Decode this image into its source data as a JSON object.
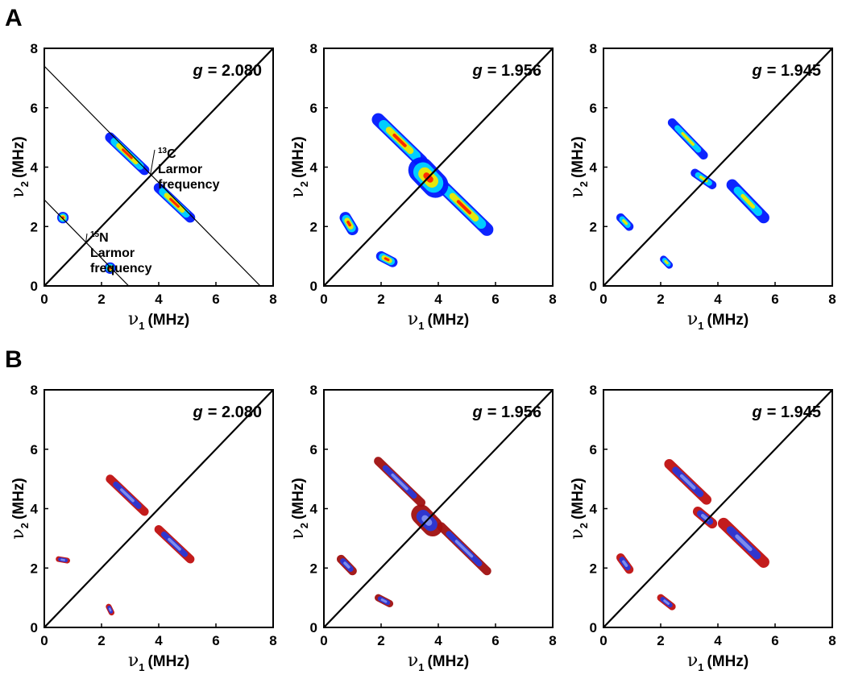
{
  "chart_data": [
    {
      "type": "contour",
      "panel_label": "A",
      "annotation": {
        "symbol": "g",
        "text": "= 2.080"
      },
      "x_label": {
        "symbol": "ν",
        "subscript": "1",
        "unit": "(MHz)"
      },
      "y_label": {
        "symbol": "ν",
        "subscript": "2",
        "unit": "(MHz)"
      },
      "xlim": [
        0,
        8
      ],
      "ylim": [
        0,
        8
      ],
      "xticks": [
        0,
        2,
        4,
        6,
        8
      ],
      "yticks": [
        0,
        2,
        4,
        6,
        8
      ],
      "colors": [
        "#0018ff",
        "#00d8ff",
        "#f0e800",
        "#ff2000"
      ],
      "reference_lines": [
        {
          "x": [
            0,
            8
          ],
          "y": [
            0,
            8
          ]
        },
        {
          "x": [
            0,
            7.55
          ],
          "y": [
            7.4,
            0
          ]
        },
        {
          "x": [
            0,
            2.95
          ],
          "y": [
            2.9,
            0
          ]
        }
      ],
      "annotations": [
        {
          "mass": "13",
          "element": "C",
          "lines": [
            "Larmor",
            "frequency"
          ]
        },
        {
          "mass": "15",
          "element": "N",
          "lines": [
            "Larmor",
            "frequency"
          ]
        }
      ],
      "features": [
        {
          "x": [
            2.3,
            3.5
          ],
          "y": [
            5.0,
            3.9
          ],
          "width": 0.35
        },
        {
          "x": [
            4.0,
            5.1
          ],
          "y": [
            3.3,
            2.3
          ],
          "width": 0.35
        },
        {
          "x": [
            0.65,
            0.65
          ],
          "y": [
            2.3,
            2.3
          ],
          "width": 0.4
        },
        {
          "x": [
            2.3,
            2.3
          ],
          "y": [
            0.6,
            0.6
          ],
          "width": 0.4
        }
      ]
    },
    {
      "type": "contour",
      "annotation": {
        "symbol": "g",
        "text": "= 1.956"
      },
      "x_label": {
        "symbol": "ν",
        "subscript": "1",
        "unit": "(MHz)"
      },
      "y_label": {
        "symbol": "ν",
        "subscript": "2",
        "unit": "(MHz)"
      },
      "xlim": [
        0,
        8
      ],
      "ylim": [
        0,
        8
      ],
      "xticks": [
        0,
        2,
        4,
        6,
        8
      ],
      "yticks": [
        0,
        2,
        4,
        6,
        8
      ],
      "colors": [
        "#0018ff",
        "#00d8ff",
        "#f0e800",
        "#ff2000"
      ],
      "reference_lines": [
        {
          "x": [
            0,
            8
          ],
          "y": [
            0,
            8
          ]
        }
      ],
      "features": [
        {
          "x": [
            1.9,
            3.4
          ],
          "y": [
            5.6,
            4.2
          ],
          "width": 0.45
        },
        {
          "x": [
            4.1,
            5.7
          ],
          "y": [
            3.4,
            1.9
          ],
          "width": 0.45
        },
        {
          "x": [
            3.4,
            3.9
          ],
          "y": [
            3.9,
            3.4
          ],
          "width": 0.9
        },
        {
          "x": [
            0.75,
            1.0
          ],
          "y": [
            2.3,
            1.9
          ],
          "width": 0.4
        },
        {
          "x": [
            2.0,
            2.4
          ],
          "y": [
            1.0,
            0.8
          ],
          "width": 0.35
        }
      ]
    },
    {
      "type": "contour",
      "annotation": {
        "symbol": "g",
        "text": "= 1.945"
      },
      "x_label": {
        "symbol": "ν",
        "subscript": "1",
        "unit": "(MHz)"
      },
      "y_label": {
        "symbol": "ν",
        "subscript": "2",
        "unit": "(MHz)"
      },
      "xlim": [
        0,
        8
      ],
      "ylim": [
        0,
        8
      ],
      "xticks": [
        0,
        2,
        4,
        6,
        8
      ],
      "yticks": [
        0,
        2,
        4,
        6,
        8
      ],
      "colors": [
        "#0018ff",
        "#00d8ff",
        "#f0e800"
      ],
      "reference_lines": [
        {
          "x": [
            0,
            8
          ],
          "y": [
            0,
            8
          ]
        }
      ],
      "features": [
        {
          "x": [
            2.4,
            3.5
          ],
          "y": [
            5.5,
            4.4
          ],
          "width": 0.3
        },
        {
          "x": [
            4.5,
            5.6
          ],
          "y": [
            3.4,
            2.3
          ],
          "width": 0.4
        },
        {
          "x": [
            3.2,
            3.8
          ],
          "y": [
            3.8,
            3.4
          ],
          "width": 0.3
        },
        {
          "x": [
            0.6,
            0.9
          ],
          "y": [
            2.3,
            2.0
          ],
          "width": 0.3
        },
        {
          "x": [
            2.1,
            2.3
          ],
          "y": [
            0.9,
            0.7
          ],
          "width": 0.25
        }
      ]
    },
    {
      "type": "contour",
      "panel_label": "B",
      "annotation": {
        "symbol": "g",
        "text": "= 2.080"
      },
      "x_label": {
        "symbol": "ν",
        "subscript": "1",
        "unit": "(MHz)"
      },
      "y_label": {
        "symbol": "ν",
        "subscript": "2",
        "unit": "(MHz)"
      },
      "xlim": [
        0,
        8
      ],
      "ylim": [
        0,
        8
      ],
      "xticks": [
        0,
        2,
        4,
        6,
        8
      ],
      "yticks": [
        0,
        2,
        4,
        6,
        8
      ],
      "colors": [
        "#c01010",
        "#2838d8",
        "#8090f0"
      ],
      "reference_lines": [
        {
          "x": [
            0,
            8
          ],
          "y": [
            0,
            8
          ]
        }
      ],
      "features": [
        {
          "x": [
            2.3,
            3.5
          ],
          "y": [
            5.0,
            3.9
          ],
          "width": 0.3
        },
        {
          "x": [
            4.0,
            5.1
          ],
          "y": [
            3.3,
            2.3
          ],
          "width": 0.3
        },
        {
          "x": [
            0.5,
            0.8
          ],
          "y": [
            2.3,
            2.25
          ],
          "width": 0.2
        },
        {
          "x": [
            2.25,
            2.35
          ],
          "y": [
            0.7,
            0.5
          ],
          "width": 0.2
        }
      ]
    },
    {
      "type": "contour",
      "annotation": {
        "symbol": "g",
        "text": "= 1.956"
      },
      "x_label": {
        "symbol": "ν",
        "subscript": "1",
        "unit": "(MHz)"
      },
      "y_label": {
        "symbol": "ν",
        "subscript": "2",
        "unit": "(MHz)"
      },
      "xlim": [
        0,
        8
      ],
      "ylim": [
        0,
        8
      ],
      "xticks": [
        0,
        2,
        4,
        6,
        8
      ],
      "yticks": [
        0,
        2,
        4,
        6,
        8
      ],
      "colors": [
        "#a01010",
        "#2838d8",
        "#8090f0"
      ],
      "reference_lines": [
        {
          "x": [
            0,
            8
          ],
          "y": [
            0,
            8
          ]
        }
      ],
      "features": [
        {
          "x": [
            1.9,
            3.4
          ],
          "y": [
            5.6,
            4.2
          ],
          "width": 0.3
        },
        {
          "x": [
            4.1,
            5.7
          ],
          "y": [
            3.4,
            1.9
          ],
          "width": 0.3
        },
        {
          "x": [
            3.4,
            3.8
          ],
          "y": [
            3.8,
            3.4
          ],
          "width": 0.7
        },
        {
          "x": [
            0.6,
            1.0
          ],
          "y": [
            2.3,
            1.9
          ],
          "width": 0.3
        },
        {
          "x": [
            1.9,
            2.3
          ],
          "y": [
            1.0,
            0.8
          ],
          "width": 0.25
        }
      ]
    },
    {
      "type": "contour",
      "annotation": {
        "symbol": "g",
        "text": "= 1.945"
      },
      "x_label": {
        "symbol": "ν",
        "subscript": "1",
        "unit": "(MHz)"
      },
      "y_label": {
        "symbol": "ν",
        "subscript": "2",
        "unit": "(MHz)"
      },
      "xlim": [
        0,
        8
      ],
      "ylim": [
        0,
        8
      ],
      "xticks": [
        0,
        2,
        4,
        6,
        8
      ],
      "yticks": [
        0,
        2,
        4,
        6,
        8
      ],
      "colors": [
        "#c01010",
        "#2838d8",
        "#8090f0"
      ],
      "reference_lines": [
        {
          "x": [
            0,
            8
          ],
          "y": [
            0,
            8
          ]
        }
      ],
      "features": [
        {
          "x": [
            2.3,
            3.6
          ],
          "y": [
            5.5,
            4.3
          ],
          "width": 0.35
        },
        {
          "x": [
            4.2,
            5.6
          ],
          "y": [
            3.5,
            2.2
          ],
          "width": 0.4
        },
        {
          "x": [
            3.3,
            3.8
          ],
          "y": [
            3.9,
            3.5
          ],
          "width": 0.35
        },
        {
          "x": [
            0.6,
            0.9
          ],
          "y": [
            2.35,
            1.95
          ],
          "width": 0.3
        },
        {
          "x": [
            2.0,
            2.4
          ],
          "y": [
            1.0,
            0.7
          ],
          "width": 0.25
        }
      ]
    }
  ]
}
